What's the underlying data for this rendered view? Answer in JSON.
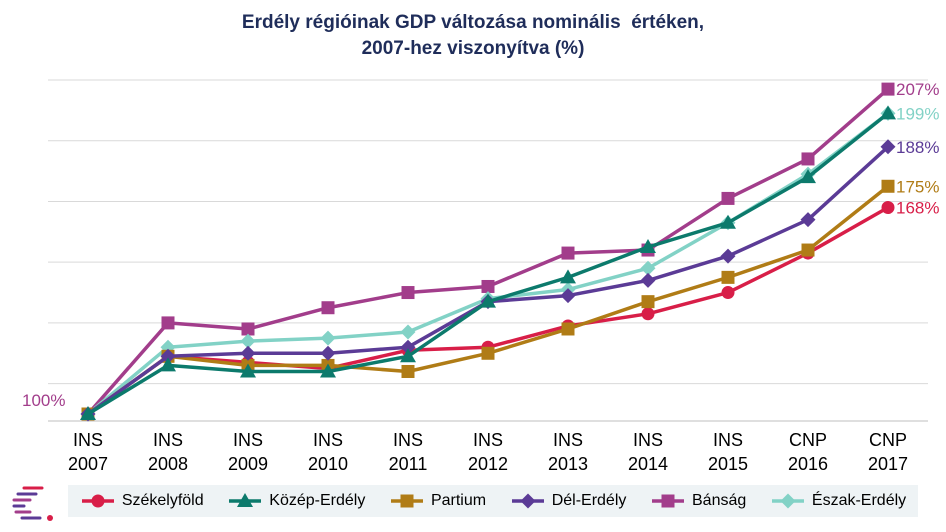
{
  "chart_data": {
    "type": "line",
    "title_line1": "Erdély régióinak GDP változása nominális  értéken,",
    "title_line2": "2007-hez viszonyítva (%)",
    "categories": [
      [
        "INS",
        "2007"
      ],
      [
        "INS",
        "2008"
      ],
      [
        "INS",
        "2009"
      ],
      [
        "INS",
        "2010"
      ],
      [
        "INS",
        "2011"
      ],
      [
        "INS",
        "2012"
      ],
      [
        "INS",
        "2013"
      ],
      [
        "INS",
        "2014"
      ],
      [
        "INS",
        "2015"
      ],
      [
        "CNP",
        "2016"
      ],
      [
        "CNP",
        "2017"
      ]
    ],
    "ylim": [
      100,
      210
    ],
    "grid": true,
    "legend_position": "bottom",
    "start_label": "100%",
    "series": [
      {
        "name": "Székelyföld",
        "color": "#d81e48",
        "marker": "circle",
        "values": [
          100,
          119,
          117,
          115,
          121,
          122,
          129,
          133,
          140,
          153,
          168
        ],
        "end_label": "168%"
      },
      {
        "name": "Közép-Erdély",
        "color": "#0c7a6c",
        "marker": "triangle",
        "values": [
          100,
          116,
          114,
          114,
          119,
          137,
          145,
          155,
          163,
          178,
          199
        ],
        "end_label": ""
      },
      {
        "name": "Partium",
        "color": "#b07c16",
        "marker": "square",
        "values": [
          100,
          119,
          116,
          116,
          114,
          120,
          128,
          137,
          145,
          154,
          175
        ],
        "end_label": "175%"
      },
      {
        "name": "Dél-Erdély",
        "color": "#5b3b96",
        "marker": "diamond",
        "values": [
          100,
          119,
          120,
          120,
          122,
          137,
          139,
          144,
          152,
          164,
          188
        ],
        "end_label": "188%"
      },
      {
        "name": "Bánság",
        "color": "#a23d8b",
        "marker": "square",
        "values": [
          100,
          130,
          128,
          135,
          140,
          142,
          153,
          154,
          171,
          184,
          207
        ],
        "end_label": "207%"
      },
      {
        "name": "Észak-Erdély",
        "color": "#82d2c6",
        "marker": "diamond",
        "values": [
          100,
          122,
          124,
          125,
          127,
          138,
          141,
          148,
          163,
          179,
          199
        ],
        "end_label": "199%"
      }
    ]
  },
  "logo": {
    "name": "logo-mark"
  }
}
